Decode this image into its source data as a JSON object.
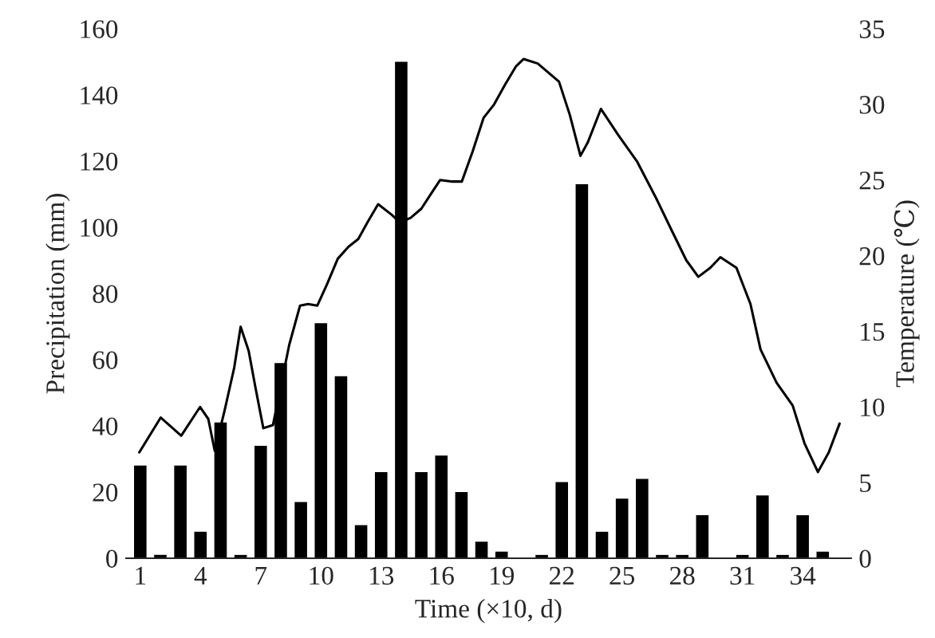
{
  "chart_data": {
    "type": "bar",
    "xlabel": "Time (×10, d)",
    "ylabel": "Precipitation (mm)",
    "y2label": "Temperature (℃)",
    "x": [
      1,
      2,
      3,
      4,
      5,
      6,
      7,
      8,
      9,
      10,
      11,
      12,
      13,
      14,
      15,
      16,
      17,
      18,
      19,
      20,
      21,
      22,
      23,
      24,
      25,
      26,
      27,
      28,
      29,
      30,
      31,
      32,
      33,
      34,
      35
    ],
    "xlim": [
      0.3,
      36.4
    ],
    "xticks": [
      1,
      4,
      7,
      10,
      13,
      16,
      19,
      22,
      25,
      28,
      31,
      34
    ],
    "ylim": [
      0,
      160
    ],
    "yticks": [
      0,
      20,
      40,
      60,
      80,
      100,
      120,
      140,
      160
    ],
    "y2lim": [
      0,
      35
    ],
    "y2ticks": [
      0,
      5,
      10,
      15,
      20,
      25,
      30,
      35
    ],
    "grid": false,
    "legend": false,
    "series": [
      {
        "color": "#000000",
        "values": [
          28,
          1,
          28,
          8,
          41,
          1,
          34,
          59,
          17,
          71,
          55,
          10,
          26,
          150,
          26,
          31,
          20,
          5,
          2,
          0,
          1,
          23,
          113,
          8,
          18,
          24,
          1,
          1,
          13,
          0,
          1,
          19,
          1,
          13,
          2
        ]
      },
      {
        "type": "line",
        "axis": "y2",
        "color": "#000000",
        "line_style": "solid",
        "marker": "none",
        "x": [
          0.95,
          2.02,
          3.04,
          3.98,
          4.39,
          4.71,
          5.19,
          5.68,
          6.0,
          6.4,
          6.75,
          7.13,
          7.61,
          8.02,
          8.42,
          8.96,
          9.36,
          9.82,
          10.3,
          10.84,
          11.38,
          11.86,
          12.32,
          12.85,
          13.53,
          13.93,
          14.47,
          15.0,
          15.54,
          15.94,
          16.48,
          17.02,
          17.56,
          18.1,
          18.63,
          19.17,
          19.71,
          20.1,
          20.8,
          21.86,
          22.4,
          22.93,
          23.3,
          23.95,
          24.8,
          25.76,
          26.7,
          27.5,
          28.2,
          28.8,
          29.4,
          29.9,
          30.7,
          31.4,
          31.9,
          32.7,
          33.5,
          34.09,
          34.76,
          35.3,
          35.84
        ],
        "values": [
          7.0,
          9.3,
          8.1,
          10.0,
          9.2,
          7.1,
          9.7,
          12.6,
          15.3,
          13.7,
          11.2,
          8.6,
          8.8,
          11.5,
          14.1,
          16.7,
          16.8,
          16.7,
          18.1,
          19.8,
          20.6,
          21.1,
          22.2,
          23.4,
          22.7,
          22.2,
          22.5,
          23.1,
          24.2,
          25.0,
          24.9,
          24.9,
          26.9,
          29.1,
          30.0,
          31.3,
          32.5,
          33.0,
          32.7,
          31.5,
          29.3,
          26.6,
          27.5,
          29.7,
          28.0,
          26.2,
          23.8,
          21.6,
          19.7,
          18.6,
          19.2,
          19.9,
          19.2,
          16.8,
          13.8,
          11.6,
          10.1,
          7.6,
          5.7,
          7.0,
          8.9
        ]
      }
    ]
  }
}
